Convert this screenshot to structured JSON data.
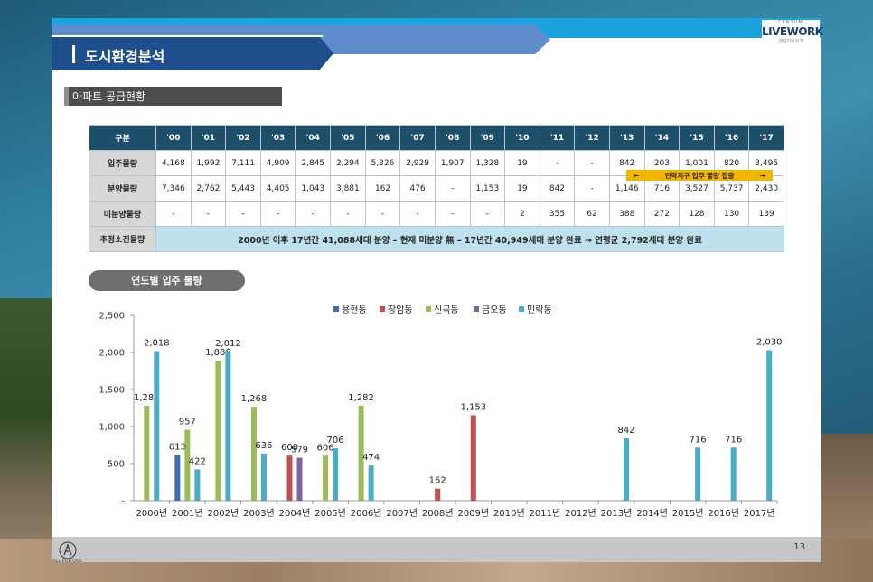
{
  "header": {
    "title": "도시환경분석"
  },
  "logo": {
    "sub": "CENTUM",
    "main": "LIVEWORK",
    "kr": "센텀리브워크"
  },
  "section": {
    "label": "아파트 공급현황"
  },
  "table": {
    "columns": [
      "구분",
      "'00",
      "'01",
      "'02",
      "'03",
      "'04",
      "'05",
      "'06",
      "'07",
      "'08",
      "'09",
      "'10",
      "'11",
      "'12",
      "'13",
      "'14",
      "'15",
      "'16",
      "'17"
    ],
    "rows": [
      {
        "label": "입주물량",
        "cells": [
          "4,168",
          "1,992",
          "7,111",
          "4,909",
          "2,845",
          "2,294",
          "5,326",
          "2,929",
          "1,907",
          "1,328",
          "19",
          "-",
          "-",
          "842",
          "203",
          "1,001",
          "820",
          "3,495"
        ]
      },
      {
        "label": "분양물량",
        "cells": [
          "7,346",
          "2,762",
          "5,443",
          "4,405",
          "1,043",
          "3,881",
          "162",
          "476",
          "-",
          "1,153",
          "19",
          "842",
          "-",
          "1,146",
          "716",
          "3,527",
          "5,737",
          "2,430"
        ]
      },
      {
        "label": "미분양물량",
        "cells": [
          "-",
          "-",
          "-",
          "-",
          "-",
          "-",
          "-",
          "-",
          "-",
          "-",
          "2",
          "355",
          "62",
          "388",
          "272",
          "128",
          "130",
          "139"
        ]
      }
    ],
    "summary_label": "추정소진물량",
    "summary_text": "2000년 이후 17년간 41,088세대 분양 – 현재 미분양 無 – 17년간 40,949세대 분양 완료 → 연평균 2,792세대 분양 완료",
    "callout": {
      "left": "←",
      "text": "민락지구 입주 물량 집중",
      "right": "→"
    }
  },
  "chart_pill": "연도별 입주 물량",
  "chart_data": {
    "type": "bar",
    "categories": [
      "2000년",
      "2001년",
      "2002년",
      "2003년",
      "2004년",
      "2005년",
      "2006년",
      "2007년",
      "2008년",
      "2009년",
      "2010년",
      "2011년",
      "2012년",
      "2013년",
      "2014년",
      "2015년",
      "2016년",
      "2017년"
    ],
    "ylim": [
      0,
      2500
    ],
    "yticks": [
      "-",
      "500",
      "1,000",
      "1,500",
      "2,000",
      "2,500"
    ],
    "legend_position": "top",
    "series": [
      {
        "name": "용현동",
        "color": "#3d6fb6",
        "values": [
          0,
          613,
          0,
          0,
          0,
          0,
          0,
          0,
          0,
          0,
          0,
          0,
          0,
          0,
          0,
          0,
          0,
          0
        ]
      },
      {
        "name": "장암동",
        "color": "#c0504d",
        "values": [
          0,
          0,
          0,
          0,
          608,
          0,
          0,
          0,
          162,
          1153,
          0,
          0,
          0,
          0,
          0,
          0,
          0,
          0
        ]
      },
      {
        "name": "신곡동",
        "color": "#9bbb59",
        "values": [
          1280,
          957,
          1888,
          1268,
          0,
          606,
          1282,
          0,
          0,
          0,
          0,
          0,
          0,
          0,
          0,
          0,
          0,
          0
        ]
      },
      {
        "name": "금오동",
        "color": "#7f63a6",
        "values": [
          0,
          0,
          0,
          0,
          579,
          0,
          0,
          0,
          0,
          0,
          0,
          0,
          0,
          0,
          0,
          0,
          0,
          0
        ]
      },
      {
        "name": "민락동",
        "color": "#4bacc6",
        "values": [
          2018,
          422,
          2012,
          636,
          0,
          706,
          474,
          0,
          0,
          0,
          0,
          0,
          0,
          842,
          0,
          716,
          716,
          2030
        ]
      }
    ],
    "data_labels": [
      "2,018",
      "1,280",
      "613",
      "957",
      "422",
      "1,888",
      "2,012",
      "1,268",
      "636",
      "608",
      "579",
      "606",
      "706",
      "1,282",
      "474",
      "162",
      "1,153",
      "842",
      "716",
      "716",
      "2,030"
    ]
  },
  "footer": {
    "page": "13",
    "logo_text": "ALL FOR ONE"
  }
}
